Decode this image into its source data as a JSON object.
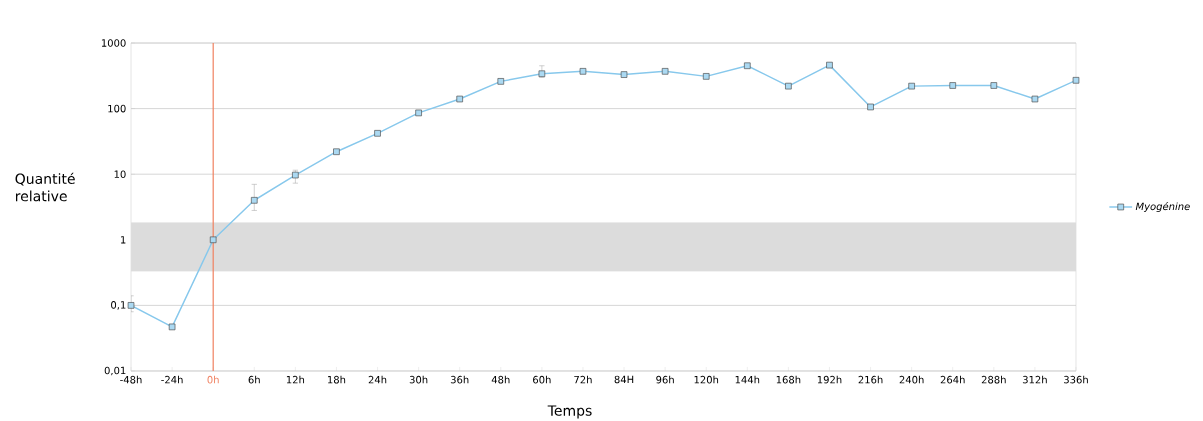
{
  "chart_data": {
    "type": "line",
    "xlabel": "Temps",
    "ylabel": "Quantité relative",
    "categories": [
      "-48h",
      "-24h",
      "0h",
      "6h",
      "12h",
      "18h",
      "24h",
      "30h",
      "36h",
      "48h",
      "60h",
      "72h",
      "84H",
      "96h",
      "120h",
      "144h",
      "168h",
      "192h",
      "216h",
      "240h",
      "264h",
      "288h",
      "312h",
      "336h"
    ],
    "series": [
      {
        "name": "Myogénine",
        "color": "#87c8ec",
        "values": [
          0.1,
          0.047,
          1,
          4,
          9.7,
          22,
          42,
          86,
          140,
          260,
          340,
          370,
          330,
          370,
          310,
          450,
          220,
          460,
          106,
          220,
          225,
          225,
          140,
          270
        ],
        "errors": [
          [
            0.08,
            0.14
          ],
          null,
          null,
          [
            2.8,
            7
          ],
          [
            7.3,
            11.5
          ],
          null,
          null,
          null,
          null,
          null,
          [
            300,
            450
          ],
          null,
          null,
          null,
          null,
          null,
          null,
          null,
          null,
          null,
          null,
          null,
          null,
          null
        ]
      }
    ],
    "log": "y",
    "ylim": [
      0.01,
      1000
    ],
    "yticks": [
      {
        "value": 0.01,
        "label": "0,01"
      },
      {
        "value": 0.1,
        "label": "0,1"
      },
      1,
      10,
      100,
      1000
    ],
    "grid": "y",
    "legend": "right",
    "marker": "square",
    "line_style": "solid",
    "ref_lines": [
      {
        "axis": "x",
        "value": "0h",
        "color": "#f08060"
      }
    ],
    "bands": [
      {
        "axis": "y",
        "from": 0.33,
        "to": 1.85,
        "color": "#dcdcdc"
      }
    ]
  }
}
